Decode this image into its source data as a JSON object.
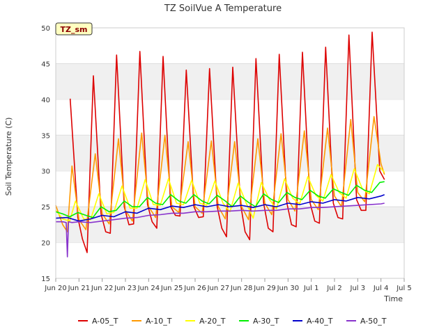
{
  "chart_data": {
    "type": "line",
    "title": "TZ SoilVue A Temperature",
    "xlabel": "Time",
    "ylabel": "Soil Temperature (C)",
    "badge": "TZ_sm",
    "ylim": [
      15,
      50
    ],
    "yticks": [
      15,
      20,
      25,
      30,
      35,
      40,
      45,
      50
    ],
    "xlim": [
      0,
      15
    ],
    "xticks": [
      {
        "x": 0,
        "label": "Jun 20"
      },
      {
        "x": 1,
        "label": "Jun 21"
      },
      {
        "x": 2,
        "label": "Jun 22"
      },
      {
        "x": 3,
        "label": "Jun 23"
      },
      {
        "x": 4,
        "label": "Jun 24"
      },
      {
        "x": 5,
        "label": "Jun 25"
      },
      {
        "x": 6,
        "label": "Jun 26"
      },
      {
        "x": 7,
        "label": "Jun 27"
      },
      {
        "x": 8,
        "label": "Jun 28"
      },
      {
        "x": 9,
        "label": "Jun 29"
      },
      {
        "x": 10,
        "label": "Jun 30"
      },
      {
        "x": 11,
        "label": "Jul 1"
      },
      {
        "x": 12,
        "label": "Jul 2"
      },
      {
        "x": 13,
        "label": "Jul 3"
      },
      {
        "x": 14,
        "label": "Jul 4"
      },
      {
        "x": 15,
        "label": "Jul 5"
      }
    ],
    "x_unit": "days since Jun 20",
    "grid": "horizontal bands",
    "legend_position": "bottom",
    "series": [
      {
        "name": "A-05_T",
        "color": "#dd0000",
        "x": [
          0.62,
          0.95,
          1.15,
          1.35,
          1.62,
          1.95,
          2.15,
          2.35,
          2.62,
          2.95,
          3.15,
          3.35,
          3.62,
          3.95,
          4.15,
          4.35,
          4.62,
          4.95,
          5.15,
          5.35,
          5.62,
          5.95,
          6.15,
          6.35,
          6.62,
          6.95,
          7.15,
          7.35,
          7.62,
          7.95,
          8.15,
          8.35,
          8.62,
          8.95,
          9.15,
          9.35,
          9.62,
          9.95,
          10.15,
          10.35,
          10.62,
          10.95,
          11.15,
          11.35,
          11.62,
          11.95,
          12.15,
          12.35,
          12.62,
          12.95,
          13.15,
          13.35,
          13.62,
          13.95,
          14.15
        ],
        "y": [
          40.1,
          23.5,
          20.5,
          18.6,
          43.3,
          24.0,
          21.5,
          21.3,
          46.2,
          25.0,
          22.5,
          22.6,
          46.7,
          25.3,
          22.9,
          22.0,
          46.0,
          25.0,
          23.8,
          23.7,
          44.1,
          25.0,
          23.5,
          23.6,
          44.3,
          25.0,
          22.0,
          20.8,
          44.5,
          25.5,
          21.5,
          20.4,
          45.7,
          25.5,
          22.0,
          21.5,
          46.3,
          25.5,
          22.5,
          22.2,
          46.6,
          25.5,
          23.0,
          22.7,
          47.3,
          25.5,
          23.5,
          23.3,
          49.0,
          26.0,
          24.5,
          24.5,
          49.4,
          30.0,
          28.8
        ]
      },
      {
        "name": "A-10_T",
        "color": "#ff9900",
        "x": [
          0.0,
          0.3,
          0.5,
          0.7,
          1.0,
          1.3,
          1.7,
          2.0,
          2.3,
          2.7,
          3.0,
          3.3,
          3.7,
          4.0,
          4.3,
          4.7,
          5.0,
          5.3,
          5.7,
          6.0,
          6.3,
          6.7,
          7.0,
          7.3,
          7.7,
          8.0,
          8.3,
          8.7,
          9.0,
          9.3,
          9.7,
          10.0,
          10.3,
          10.7,
          11.0,
          11.3,
          11.7,
          12.0,
          12.3,
          12.7,
          13.0,
          13.3,
          13.7,
          14.0,
          14.15
        ],
        "y": [
          25.2,
          22.5,
          21.5,
          30.7,
          23.2,
          21.8,
          32.4,
          24.0,
          22.6,
          34.5,
          24.5,
          23.0,
          35.3,
          25.0,
          23.5,
          35.0,
          25.0,
          24.2,
          34.1,
          25.0,
          24.1,
          34.2,
          25.0,
          23.3,
          34.1,
          25.0,
          23.2,
          34.5,
          25.5,
          23.9,
          35.2,
          26.0,
          24.4,
          35.6,
          26.0,
          24.6,
          36.0,
          26.5,
          25.0,
          37.2,
          27.0,
          25.7,
          37.6,
          31.0,
          29.5
        ]
      },
      {
        "name": "A-20_T",
        "color": "#ffff00",
        "x": [
          0.0,
          0.3,
          0.6,
          0.85,
          1.2,
          1.5,
          1.85,
          2.2,
          2.5,
          2.85,
          3.2,
          3.5,
          3.85,
          4.2,
          4.5,
          4.85,
          5.2,
          5.5,
          5.85,
          6.2,
          6.5,
          6.85,
          7.2,
          7.5,
          7.85,
          8.2,
          8.5,
          8.85,
          9.2,
          9.5,
          9.85,
          10.2,
          10.5,
          10.85,
          11.2,
          11.5,
          11.85,
          12.2,
          12.5,
          12.85,
          13.2,
          13.5,
          13.85,
          14.15
        ],
        "y": [
          24.5,
          23.3,
          23.0,
          25.8,
          23.3,
          23.2,
          26.8,
          24.0,
          24.2,
          27.9,
          24.8,
          24.8,
          28.8,
          25.3,
          25.2,
          28.9,
          25.5,
          25.3,
          28.7,
          25.5,
          25.2,
          28.6,
          25.5,
          24.3,
          28.3,
          25.5,
          23.4,
          28.4,
          26.0,
          24.7,
          28.9,
          26.2,
          25.4,
          29.2,
          26.6,
          25.8,
          29.5,
          27.0,
          26.2,
          30.3,
          27.5,
          26.8,
          30.9,
          29.8
        ]
      },
      {
        "name": "A-30_T",
        "color": "#00ee00",
        "x": [
          0.0,
          0.3,
          0.6,
          0.95,
          1.3,
          1.6,
          1.95,
          2.3,
          2.6,
          2.95,
          3.3,
          3.6,
          3.95,
          4.3,
          4.6,
          4.95,
          5.3,
          5.6,
          5.95,
          6.3,
          6.6,
          6.95,
          7.3,
          7.6,
          7.95,
          8.3,
          8.6,
          8.95,
          9.3,
          9.6,
          9.95,
          10.3,
          10.6,
          10.95,
          11.3,
          11.6,
          11.95,
          12.3,
          12.6,
          12.95,
          13.3,
          13.6,
          13.95,
          14.15
        ],
        "y": [
          24.3,
          24.0,
          23.6,
          24.2,
          23.8,
          23.5,
          25.0,
          24.3,
          24.5,
          25.8,
          25.0,
          25.0,
          26.3,
          25.5,
          25.3,
          26.7,
          25.8,
          25.5,
          26.7,
          25.8,
          25.4,
          26.6,
          25.8,
          25.0,
          26.5,
          25.6,
          25.0,
          26.8,
          26.0,
          25.6,
          27.0,
          26.3,
          26.0,
          27.3,
          26.5,
          26.2,
          27.5,
          27.0,
          26.6,
          28.0,
          27.3,
          27.0,
          28.4,
          28.5
        ]
      },
      {
        "name": "A-40_T",
        "color": "#0000cc",
        "x": [
          0.0,
          0.5,
          1.0,
          1.5,
          2.0,
          2.5,
          3.0,
          3.5,
          4.0,
          4.5,
          5.0,
          5.5,
          6.0,
          6.5,
          7.0,
          7.5,
          8.0,
          8.5,
          9.0,
          9.5,
          10.0,
          10.5,
          11.0,
          11.5,
          12.0,
          12.5,
          13.0,
          13.5,
          14.0,
          14.15
        ],
        "y": [
          23.4,
          23.5,
          23.0,
          23.3,
          23.8,
          23.6,
          24.3,
          24.1,
          24.8,
          24.6,
          25.1,
          24.9,
          25.3,
          25.0,
          25.3,
          25.0,
          25.2,
          24.9,
          25.3,
          25.0,
          25.5,
          25.3,
          25.7,
          25.5,
          26.0,
          25.8,
          26.3,
          26.1,
          26.5,
          26.7
        ]
      },
      {
        "name": "A-50_T",
        "color": "#8833cc",
        "x": [
          0.0,
          0.3,
          0.45,
          0.5,
          0.55,
          0.7,
          1.0,
          1.5,
          2.0,
          2.5,
          3.0,
          3.5,
          4.0,
          4.5,
          5.0,
          5.5,
          6.0,
          6.5,
          7.0,
          7.5,
          8.0,
          8.5,
          9.0,
          9.5,
          10.0,
          10.5,
          11.0,
          11.5,
          12.0,
          12.5,
          13.0,
          13.5,
          14.0,
          14.15
        ],
        "y": [
          22.9,
          22.9,
          22.8,
          18.0,
          22.9,
          22.8,
          22.9,
          22.8,
          23.0,
          23.2,
          23.4,
          23.5,
          23.8,
          23.9,
          24.1,
          24.1,
          24.3,
          24.3,
          24.4,
          24.4,
          24.5,
          24.4,
          24.5,
          24.5,
          24.7,
          24.7,
          24.9,
          24.9,
          25.0,
          25.1,
          25.2,
          25.3,
          25.4,
          25.5
        ]
      }
    ]
  }
}
